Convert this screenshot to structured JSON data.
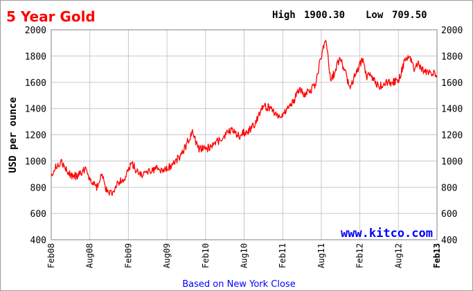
{
  "chart_data": {
    "type": "line",
    "title": "5 Year Gold",
    "high_label": "High",
    "high_value": "1900.30",
    "low_label": "Low",
    "low_value": "709.50",
    "ylabel": "USD per ounce",
    "watermark": "www.kitco.com",
    "footer": "Based on New York Close",
    "ylim": [
      400,
      2000
    ],
    "y_ticks": [
      2000,
      1800,
      1600,
      1400,
      1200,
      1000,
      800,
      600,
      400
    ],
    "x_ticks": [
      "Feb08",
      "Aug08",
      "Feb09",
      "Aug09",
      "Feb10",
      "Aug10",
      "Feb11",
      "Aug11",
      "Feb12",
      "Aug12",
      "Feb13"
    ],
    "grid": true,
    "series": [
      {
        "color": "#ff0000",
        "x": [
          "2008-02-01",
          "2008-03-17",
          "2008-04-15",
          "2008-05-15",
          "2008-06-15",
          "2008-07-15",
          "2008-08-15",
          "2008-09-10",
          "2008-10-01",
          "2008-10-24",
          "2008-11-15",
          "2008-12-15",
          "2009-01-15",
          "2009-02-20",
          "2009-03-15",
          "2009-04-15",
          "2009-05-15",
          "2009-06-15",
          "2009-07-15",
          "2009-08-15",
          "2009-09-15",
          "2009-10-15",
          "2009-11-15",
          "2009-12-03",
          "2010-01-01",
          "2010-02-05",
          "2010-03-15",
          "2010-04-15",
          "2010-05-15",
          "2010-06-15",
          "2010-07-15",
          "2010-08-15",
          "2010-09-15",
          "2010-10-15",
          "2010-11-09",
          "2010-12-15",
          "2011-01-28",
          "2011-02-15",
          "2011-03-15",
          "2011-04-15",
          "2011-05-02",
          "2011-05-20",
          "2011-06-15",
          "2011-07-15",
          "2011-08-10",
          "2011-08-22",
          "2011-09-06",
          "2011-09-26",
          "2011-10-15",
          "2011-11-08",
          "2011-12-01",
          "2011-12-29",
          "2012-01-15",
          "2012-02-28",
          "2012-03-15",
          "2012-04-15",
          "2012-05-15",
          "2012-06-15",
          "2012-07-15",
          "2012-08-15",
          "2012-09-15",
          "2012-10-05",
          "2012-11-01",
          "2012-11-20",
          "2012-12-15",
          "2013-01-15",
          "2013-02-15"
        ],
        "y": [
          905,
          1000,
          920,
          880,
          895,
          950,
          820,
          800,
          900,
          760,
          750,
          840,
          860,
          985,
          920,
          890,
          930,
          940,
          925,
          950,
          1000,
          1050,
          1150,
          1220,
          1100,
          1090,
          1120,
          1160,
          1200,
          1245,
          1190,
          1220,
          1250,
          1340,
          1420,
          1400,
          1330,
          1370,
          1420,
          1490,
          1560,
          1490,
          1530,
          1580,
          1780,
          1880,
          1895,
          1620,
          1670,
          1790,
          1700,
          1550,
          1640,
          1780,
          1650,
          1640,
          1560,
          1600,
          1600,
          1615,
          1770,
          1790,
          1700,
          1740,
          1680,
          1680,
          1650
        ]
      }
    ]
  }
}
